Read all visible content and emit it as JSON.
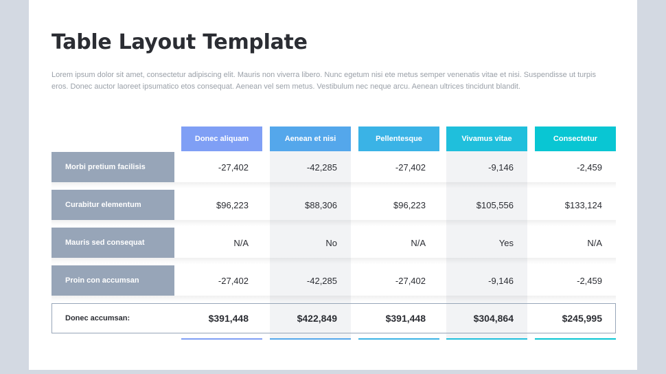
{
  "title": "Table Layout Template",
  "description": "Lorem ipsum dolor sit amet, consectetur adipiscing elit. Mauris non viverra libero. Nunc egetum nisi ete metus semper venenatis vitae et nisi. Suspendisse ut turpis eros. Donec auctor laoreet ipsumatico etos consequat. Aenean vel sem metus. Vestibulum nec neque arcu. Aenean ultrices tincidunt blandit.",
  "table": {
    "columns": [
      {
        "label": "Donec aliquam",
        "color": "#7f9ff5"
      },
      {
        "label": "Aenean et nisi",
        "color": "#54a7eb"
      },
      {
        "label": "Pellentesque",
        "color": "#3ab3e6"
      },
      {
        "label": "Vivamus vitae",
        "color": "#1fbfdc"
      },
      {
        "label": "Consectetur",
        "color": "#09c6d3"
      }
    ],
    "rows": [
      {
        "label": "Morbi pretium facilisis",
        "cells": [
          "-27,402",
          "-42,285",
          "-27,402",
          "-9,146",
          "-2,459"
        ]
      },
      {
        "label": "Curabitur elementum",
        "cells": [
          "$96,223",
          "$88,306",
          "$96,223",
          "$105,556",
          "$133,124"
        ]
      },
      {
        "label": "Mauris sed consequat",
        "cells": [
          "N/A",
          "No",
          "N/A",
          "Yes",
          "N/A"
        ]
      },
      {
        "label": "Proin con accumsan",
        "cells": [
          "-27,402",
          "-42,285",
          "-27,402",
          "-9,146",
          "-2,459"
        ]
      }
    ],
    "total": {
      "label": "Donec accumsan:",
      "cells": [
        "$391,448",
        "$422,849",
        "$391,448",
        "$304,864",
        "$245,995"
      ]
    }
  }
}
